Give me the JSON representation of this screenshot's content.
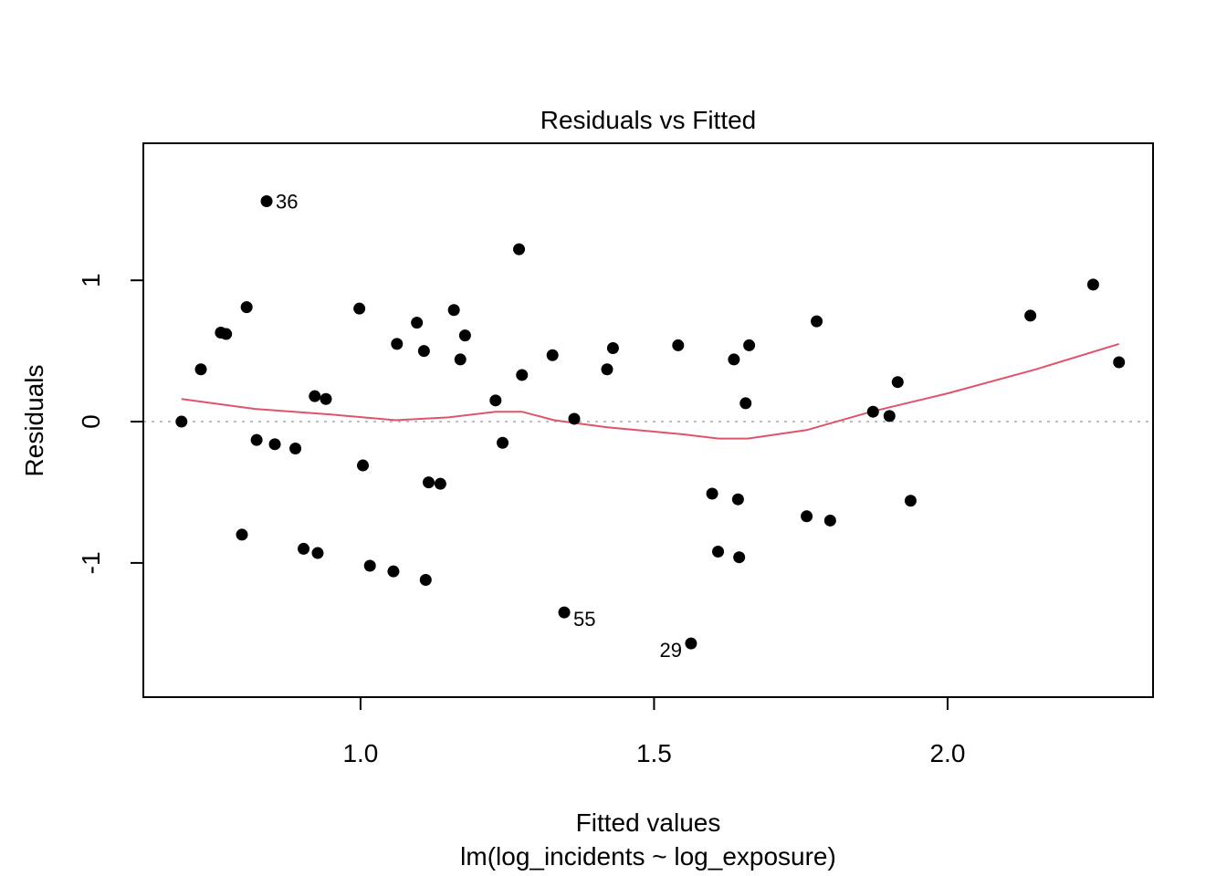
{
  "chart_data": {
    "type": "scatter",
    "title": "Residuals vs Fitted",
    "xlabel": "Fitted values",
    "subtitle": "lm(log_incidents ~ log_exposure)",
    "ylabel": "Residuals",
    "xlim": [
      0.63,
      2.35
    ],
    "ylim": [
      -1.95,
      1.97
    ],
    "x_ticks": [
      1.0,
      1.5,
      2.0
    ],
    "x_tick_labels": [
      "1.0",
      "1.5",
      "2.0"
    ],
    "y_ticks": [
      -1,
      0,
      1
    ],
    "y_tick_labels": [
      "-1",
      "0",
      "1"
    ],
    "reference_line": 0,
    "colors": {
      "points": "#000000",
      "smooth": "#DF536B",
      "reference": "#BEBEBE"
    },
    "points": [
      {
        "x": 0.695,
        "y": 0.0
      },
      {
        "x": 0.728,
        "y": 0.37
      },
      {
        "x": 0.762,
        "y": 0.63
      },
      {
        "x": 0.771,
        "y": 0.62
      },
      {
        "x": 0.798,
        "y": -0.8
      },
      {
        "x": 0.806,
        "y": 0.81
      },
      {
        "x": 0.823,
        "y": -0.13
      },
      {
        "x": 0.84,
        "y": 1.56,
        "label": "36"
      },
      {
        "x": 0.854,
        "y": -0.16
      },
      {
        "x": 0.889,
        "y": -0.19
      },
      {
        "x": 0.903,
        "y": -0.9
      },
      {
        "x": 0.922,
        "y": 0.18
      },
      {
        "x": 0.927,
        "y": -0.93
      },
      {
        "x": 0.941,
        "y": 0.16
      },
      {
        "x": 0.998,
        "y": 0.8
      },
      {
        "x": 1.004,
        "y": -0.31
      },
      {
        "x": 1.016,
        "y": -1.02
      },
      {
        "x": 1.056,
        "y": -1.06
      },
      {
        "x": 1.062,
        "y": 0.55
      },
      {
        "x": 1.096,
        "y": 0.7
      },
      {
        "x": 1.108,
        "y": 0.5
      },
      {
        "x": 1.111,
        "y": -1.12
      },
      {
        "x": 1.116,
        "y": -0.43
      },
      {
        "x": 1.136,
        "y": -0.44
      },
      {
        "x": 1.159,
        "y": 0.79
      },
      {
        "x": 1.17,
        "y": 0.44
      },
      {
        "x": 1.178,
        "y": 0.61
      },
      {
        "x": 1.23,
        "y": 0.15
      },
      {
        "x": 1.242,
        "y": -0.15
      },
      {
        "x": 1.27,
        "y": 1.22
      },
      {
        "x": 1.275,
        "y": 0.33
      },
      {
        "x": 1.327,
        "y": 0.47
      },
      {
        "x": 1.347,
        "y": -1.35,
        "label": "55"
      },
      {
        "x": 1.364,
        "y": 0.02
      },
      {
        "x": 1.42,
        "y": 0.37
      },
      {
        "x": 1.43,
        "y": 0.52
      },
      {
        "x": 1.541,
        "y": 0.54
      },
      {
        "x": 1.563,
        "y": -1.57,
        "label": "29"
      },
      {
        "x": 1.599,
        "y": -0.51
      },
      {
        "x": 1.609,
        "y": -0.92
      },
      {
        "x": 1.636,
        "y": 0.44
      },
      {
        "x": 1.643,
        "y": -0.55
      },
      {
        "x": 1.645,
        "y": -0.96
      },
      {
        "x": 1.656,
        "y": 0.13
      },
      {
        "x": 1.662,
        "y": 0.54
      },
      {
        "x": 1.76,
        "y": -0.67
      },
      {
        "x": 1.777,
        "y": 0.71
      },
      {
        "x": 1.8,
        "y": -0.7
      },
      {
        "x": 1.873,
        "y": 0.07
      },
      {
        "x": 1.901,
        "y": 0.04
      },
      {
        "x": 1.915,
        "y": 0.28
      },
      {
        "x": 1.937,
        "y": -0.56
      },
      {
        "x": 2.141,
        "y": 0.75
      },
      {
        "x": 2.248,
        "y": 0.97
      },
      {
        "x": 2.292,
        "y": 0.42
      }
    ],
    "smooth_line": [
      {
        "x": 0.695,
        "y": 0.16
      },
      {
        "x": 0.82,
        "y": 0.09
      },
      {
        "x": 0.95,
        "y": 0.05
      },
      {
        "x": 1.06,
        "y": 0.01
      },
      {
        "x": 1.15,
        "y": 0.03
      },
      {
        "x": 1.23,
        "y": 0.07
      },
      {
        "x": 1.275,
        "y": 0.07
      },
      {
        "x": 1.33,
        "y": 0.01
      },
      {
        "x": 1.42,
        "y": -0.04
      },
      {
        "x": 1.55,
        "y": -0.09
      },
      {
        "x": 1.61,
        "y": -0.12
      },
      {
        "x": 1.66,
        "y": -0.12
      },
      {
        "x": 1.76,
        "y": -0.06
      },
      {
        "x": 1.87,
        "y": 0.07
      },
      {
        "x": 2.0,
        "y": 0.2
      },
      {
        "x": 2.15,
        "y": 0.37
      },
      {
        "x": 2.292,
        "y": 0.55
      }
    ]
  }
}
